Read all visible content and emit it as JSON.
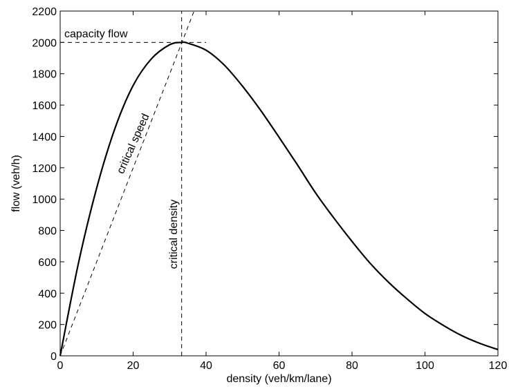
{
  "chart_data": {
    "type": "line",
    "title": "",
    "xlabel": "density (veh/km/lane)",
    "ylabel": "flow (veh/h)",
    "xlim": [
      0,
      120
    ],
    "ylim": [
      0,
      2200
    ],
    "xticks": [
      0,
      20,
      40,
      60,
      80,
      100,
      120
    ],
    "yticks": [
      0,
      200,
      400,
      600,
      800,
      1000,
      1200,
      1400,
      1600,
      1800,
      2000,
      2200
    ],
    "grid": false,
    "legend": "none",
    "series": [
      {
        "style": "solid",
        "points": [
          [
            0,
            0
          ],
          [
            5,
            590
          ],
          [
            10,
            1070
          ],
          [
            15,
            1450
          ],
          [
            20,
            1725
          ],
          [
            25,
            1895
          ],
          [
            30,
            1985
          ],
          [
            33.3,
            2000
          ],
          [
            35,
            1995
          ],
          [
            40,
            1950
          ],
          [
            45,
            1855
          ],
          [
            50,
            1720
          ],
          [
            55,
            1565
          ],
          [
            60,
            1395
          ],
          [
            65,
            1220
          ],
          [
            70,
            1040
          ],
          [
            75,
            880
          ],
          [
            80,
            730
          ],
          [
            85,
            590
          ],
          [
            90,
            470
          ],
          [
            95,
            365
          ],
          [
            100,
            270
          ],
          [
            105,
            195
          ],
          [
            110,
            130
          ],
          [
            115,
            80
          ],
          [
            120,
            40
          ]
        ]
      }
    ],
    "reference_lines": {
      "capacity_flow": {
        "y": 2000,
        "x_range": [
          0,
          40
        ]
      },
      "critical_density": {
        "x": 33.3,
        "y_range": [
          0,
          2200
        ]
      },
      "critical_speed": {
        "slope": 60,
        "from": [
          0,
          0
        ],
        "to": [
          36.7,
          2200
        ]
      }
    },
    "annotations": [
      {
        "key": "capacity",
        "text": "capacity flow"
      },
      {
        "key": "speed",
        "text": "critical speed"
      },
      {
        "key": "density",
        "text": "critical density"
      }
    ]
  }
}
